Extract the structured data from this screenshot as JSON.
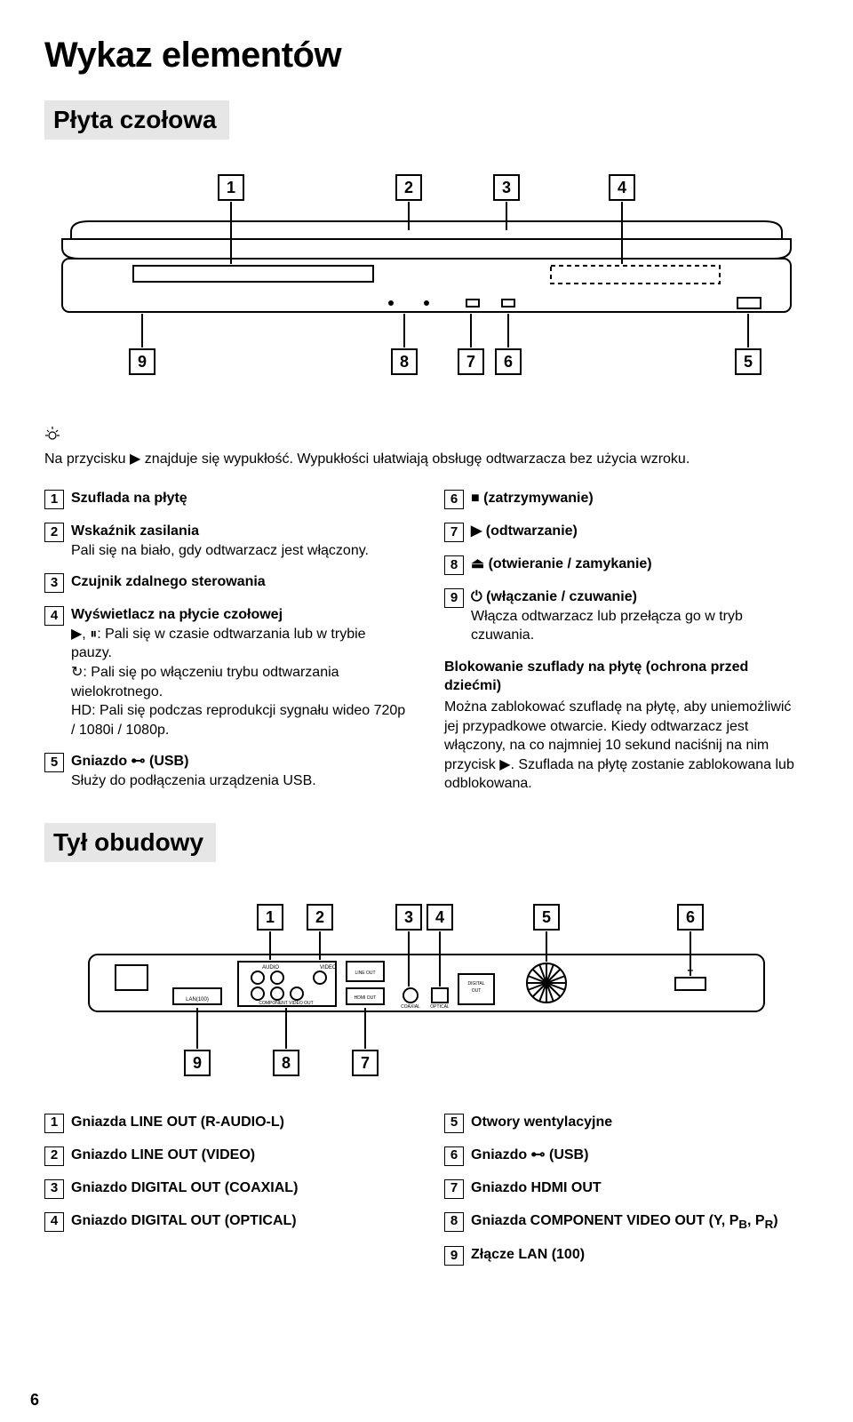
{
  "page_number": "6",
  "title": "Wykaz elementów",
  "front_heading": "Płyta czołowa",
  "tip_prefix": "Na przycisku",
  "tip_suffix": " znajduje się wypukłość. Wypukłości ułatwiają obsługę odtwarzacza bez użycia wzroku.",
  "front_items_left": [
    {
      "n": "1",
      "title": "Szuflada na płytę"
    },
    {
      "n": "2",
      "title": "Wskaźnik zasilania",
      "sub": "Pali się na biało, gdy odtwarzacz jest włączony."
    },
    {
      "n": "3",
      "title": "Czujnik zdalnego sterowania"
    },
    {
      "n": "4",
      "title": "Wyświetlacz na płycie czołowej",
      "sub": "▶, ⏸: Pali się w czasie odtwarzania lub w trybie pauzy.\n↻: Pali się po włączeniu trybu odtwarzania wielokrotnego.\nHD: Pali się podczas reprodukcji sygnału wideo 720p / 1080i / 1080p."
    },
    {
      "n": "5",
      "title": "Gniazdo ⊷ (USB)",
      "sub": "Służy do podłączenia urządzenia USB."
    }
  ],
  "front_items_right": [
    {
      "n": "6",
      "title": "■ (zatrzymywanie)"
    },
    {
      "n": "7",
      "title": "▶ (odtwarzanie)"
    },
    {
      "n": "8",
      "title": "⏏ (otwieranie / zamykanie)"
    },
    {
      "n": "9",
      "title": "⏻ (włączanie / czuwanie)",
      "sub": "Włącza odtwarzacz lub przełącza go w tryb czuwania."
    }
  ],
  "front_extra_heading": "Blokowanie szuflady na płytę (ochrona przed dziećmi)",
  "front_extra_body": "Można zablokować szufladę na płytę, aby uniemożliwić jej przypadkowe otwarcie. Kiedy odtwarzacz jest włączony, na co najmniej 10 sekund naciśnij na nim przycisk ▶. Szuflada na płytę zostanie zablokowana lub odblokowana.",
  "rear_heading": "Tył obudowy",
  "rear_items_left": [
    {
      "n": "1",
      "title": "Gniazda LINE OUT (R-AUDIO-L)"
    },
    {
      "n": "2",
      "title": "Gniazdo LINE OUT (VIDEO)"
    },
    {
      "n": "3",
      "title": "Gniazdo DIGITAL OUT (COAXIAL)"
    },
    {
      "n": "4",
      "title": "Gniazdo DIGITAL OUT (OPTICAL)"
    }
  ],
  "rear_items_right": [
    {
      "n": "5",
      "title": "Otwory wentylacyjne"
    },
    {
      "n": "6",
      "title": "Gniazdo ⊷ (USB)"
    },
    {
      "n": "7",
      "title": "Gniazdo HDMI OUT"
    },
    {
      "n": "8",
      "title": "Gniazda COMPONENT VIDEO OUT (Y, P",
      "title_sub": "B",
      "title_mid": ", P",
      "title_sub2": "R",
      "title_end": ")"
    },
    {
      "n": "9",
      "title": "Złącze LAN (100)"
    }
  ],
  "callouts_top": [
    "1",
    "2",
    "3",
    "4"
  ],
  "callouts_bottom": [
    "9",
    "8",
    "7",
    "6",
    "5"
  ],
  "rear_callouts_top": [
    "1",
    "2",
    "3",
    "4",
    "5",
    "6"
  ],
  "rear_callouts_bottom": [
    "9",
    "8",
    "7"
  ],
  "colors": {
    "bg": "#ffffff",
    "text": "#000000",
    "band": "#e6e6e6",
    "line": "#000000"
  }
}
